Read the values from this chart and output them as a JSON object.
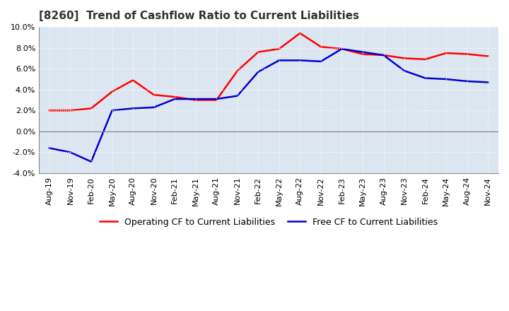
{
  "title": "[8260]  Trend of Cashflow Ratio to Current Liabilities",
  "x_labels": [
    "Aug-19",
    "Nov-19",
    "Feb-20",
    "May-20",
    "Aug-20",
    "Nov-20",
    "Feb-21",
    "May-21",
    "Aug-21",
    "Nov-21",
    "Feb-22",
    "May-22",
    "Aug-22",
    "Nov-22",
    "Feb-23",
    "May-23",
    "Aug-23",
    "Nov-23",
    "Feb-24",
    "May-24",
    "Aug-24",
    "Nov-24"
  ],
  "operating_cf": [
    2.0,
    2.0,
    2.2,
    3.8,
    4.9,
    3.5,
    3.3,
    3.0,
    3.0,
    5.8,
    7.6,
    7.9,
    9.4,
    8.1,
    7.9,
    7.4,
    7.3,
    7.0,
    6.9,
    7.5,
    7.4,
    7.2
  ],
  "free_cf": [
    -1.6,
    -2.0,
    -2.9,
    2.0,
    2.2,
    2.3,
    3.1,
    3.1,
    3.1,
    3.4,
    5.7,
    6.8,
    6.8,
    6.7,
    7.9,
    7.6,
    7.3,
    5.8,
    5.1,
    5.0,
    4.8,
    4.7
  ],
  "operating_color": "#ff0000",
  "free_color": "#0000cc",
  "ylim": [
    -4.0,
    10.0
  ],
  "yticks": [
    -4.0,
    -2.0,
    0.0,
    2.0,
    4.0,
    6.0,
    8.0,
    10.0
  ],
  "background_color": "#ffffff",
  "plot_bg_color": "#dce6f1",
  "grid_color": "#ffffff",
  "zero_line_color": "#888888",
  "legend_operating": "Operating CF to Current Liabilities",
  "legend_free": "Free CF to Current Liabilities",
  "title_fontsize": 11,
  "tick_fontsize": 8,
  "legend_fontsize": 9
}
